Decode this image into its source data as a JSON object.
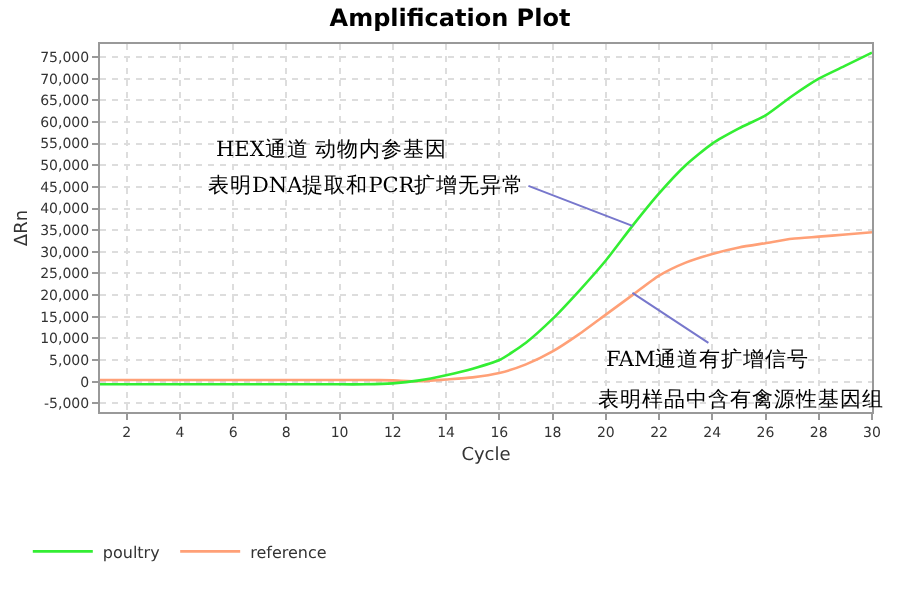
{
  "chart_data": {
    "type": "line",
    "title": "Amplification Plot",
    "xlabel": "Cycle",
    "ylabel": "ΔRn",
    "x": [
      1,
      2,
      3,
      4,
      5,
      6,
      7,
      8,
      9,
      10,
      11,
      12,
      13,
      14,
      15,
      16,
      17,
      18,
      19,
      20,
      21,
      22,
      23,
      24,
      25,
      26,
      27,
      28,
      29,
      30
    ],
    "series": [
      {
        "name": "poultry",
        "color": "#33ee33",
        "values": [
          -600,
          -600,
          -600,
          -600,
          -600,
          -600,
          -600,
          -600,
          -600,
          -600,
          -600,
          -400,
          300,
          1500,
          3000,
          5000,
          9000,
          14500,
          21000,
          28000,
          36000,
          43500,
          50000,
          55000,
          58500,
          61500,
          66000,
          70000,
          73000,
          76000
        ]
      },
      {
        "name": "reference",
        "color": "#ffa077",
        "values": [
          400,
          400,
          400,
          400,
          400,
          400,
          400,
          400,
          400,
          400,
          400,
          300,
          100,
          500,
          1000,
          2000,
          4000,
          7000,
          11000,
          15500,
          20000,
          24500,
          27500,
          29500,
          31000,
          32000,
          33000,
          33500,
          34000,
          34500
        ]
      }
    ],
    "xlim": [
      1,
      30
    ],
    "xticks": [
      2,
      4,
      6,
      8,
      10,
      12,
      14,
      16,
      18,
      20,
      22,
      24,
      26,
      28,
      30
    ],
    "ylim": [
      -7000,
      78000
    ],
    "yticks": [
      {
        "value": -5000,
        "label": "-5,000"
      },
      0,
      {
        "value": 5000,
        "label": "5,000"
      },
      {
        "value": 10000,
        "label": "10,000"
      },
      {
        "value": 15000,
        "label": "15,000"
      },
      {
        "value": 20000,
        "label": "20,000"
      },
      {
        "value": 25000,
        "label": "25,000"
      },
      {
        "value": 30000,
        "label": "30,000"
      },
      {
        "value": 35000,
        "label": "35,000"
      },
      {
        "value": 40000,
        "label": "40,000"
      },
      {
        "value": 45000,
        "label": "45,000"
      },
      {
        "value": 50000,
        "label": "50,000"
      },
      {
        "value": 55000,
        "label": "55,000"
      },
      {
        "value": 60000,
        "label": "60,000"
      },
      {
        "value": 65000,
        "label": "65,000"
      },
      {
        "value": 70000,
        "label": "70,000"
      },
      {
        "value": 75000,
        "label": "75,000"
      }
    ],
    "annotations": [
      "HEX通道 动物内参基因",
      {
        "text": "表明DNA提取和PCR扩增无异常",
        "x": 21,
        "y": 36000
      },
      {
        "text": "FAM通道有扩增信号",
        "x": 21,
        "y": 20500
      },
      "表明样品中含有禽源性基因组"
    ],
    "grid": true,
    "legend": "bottom left",
    "marker": "none",
    "line_style": "solid"
  }
}
